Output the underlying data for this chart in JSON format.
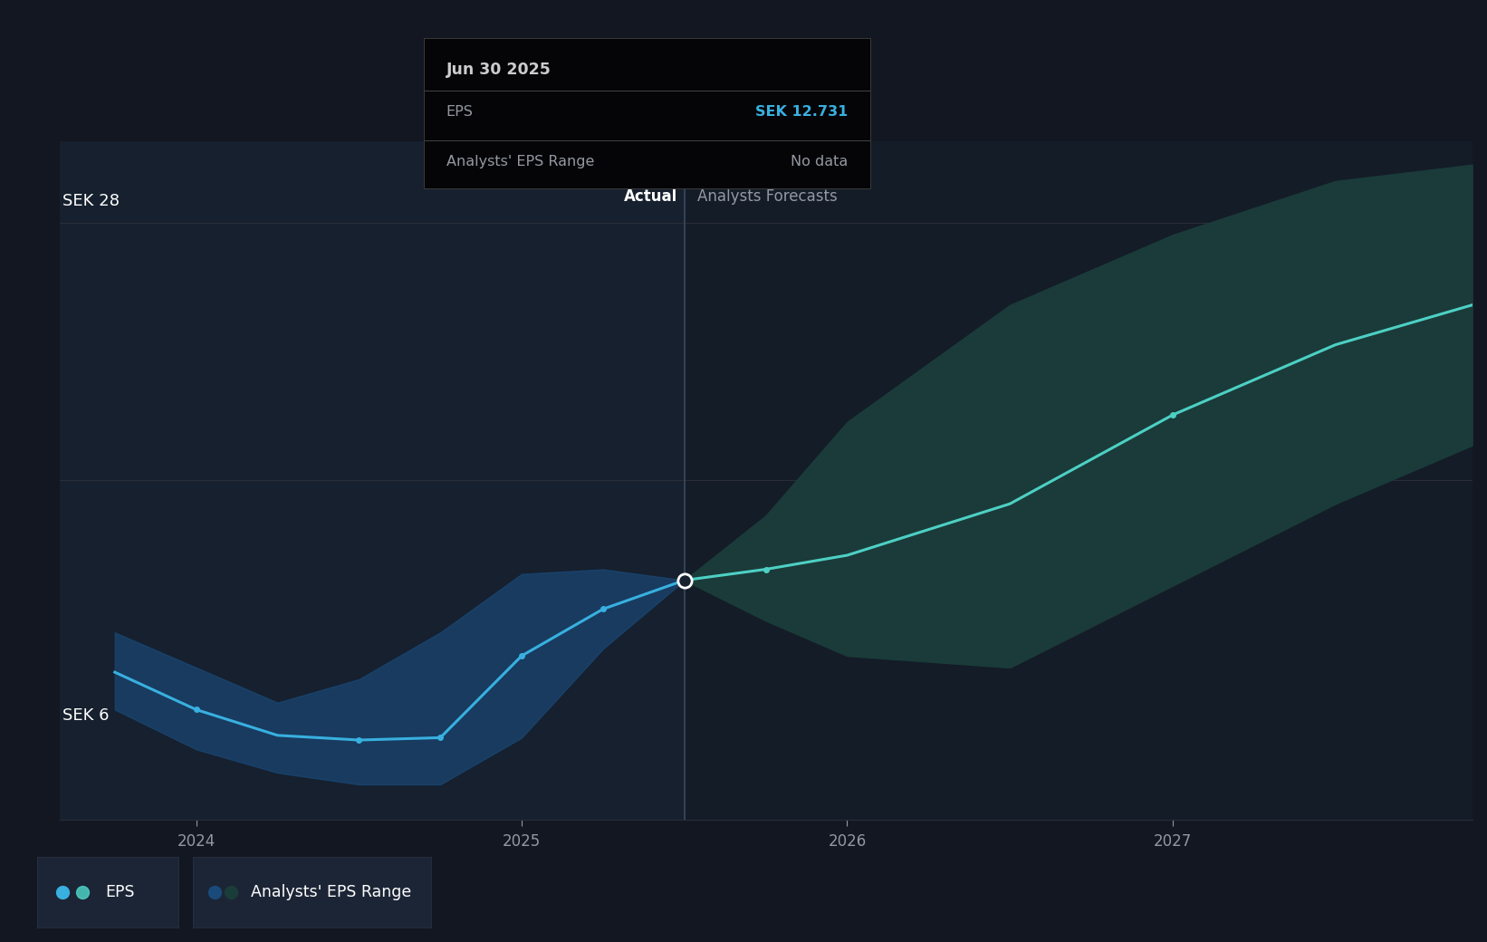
{
  "bg_color": "#131722",
  "bg_color_actual": "#16202e",
  "bg_color_forecast": "#141c28",
  "grid_color": "#2a2e39",
  "text_color": "#9598a1",
  "white_color": "#ffffff",
  "blue_line_color": "#38b0e0",
  "teal_line_color": "#4dd0c4",
  "blue_fill_color": "#1a4a7a",
  "teal_fill_color": "#1b3d3a",
  "divider_color": "#3a4a60",
  "tooltip_bg": "#050508",
  "tooltip_border": "#3a3a3a",
  "eps_value_color": "#38b0e0",
  "ylabel_28": "SEK 28",
  "ylabel_6": "SEK 6",
  "actual_label": "Actual",
  "forecast_label": "Analysts Forecasts",
  "tooltip_date": "Jun 30 2025",
  "tooltip_eps_label": "EPS",
  "tooltip_eps_value": "SEK 12.731",
  "tooltip_range_label": "Analysts' EPS Range",
  "tooltip_range_value": "No data",
  "legend_eps": "EPS",
  "legend_range": "Analysts' EPS Range",
  "xlim_min": 2023.58,
  "xlim_max": 2027.92,
  "ylim_min": 2.5,
  "ylim_max": 31.5,
  "divider_x": 2025.5,
  "y_28_val": 28,
  "y_6_val": 6,
  "gridline_y": [
    28,
    17
  ],
  "eps_actual_x": [
    2023.75,
    2024.0,
    2024.25,
    2024.5,
    2024.75,
    2025.0,
    2025.25,
    2025.5
  ],
  "eps_actual_y": [
    8.8,
    7.2,
    6.1,
    5.9,
    6.0,
    9.5,
    11.5,
    12.731
  ],
  "eps_range_actual_upper": [
    10.5,
    9.0,
    7.5,
    8.5,
    10.5,
    13.0,
    13.2,
    12.731
  ],
  "eps_range_actual_lower": [
    7.2,
    5.5,
    4.5,
    4.0,
    4.0,
    6.0,
    9.8,
    12.731
  ],
  "eps_forecast_x": [
    2025.5,
    2025.75,
    2026.0,
    2026.5,
    2027.0,
    2027.5,
    2027.92
  ],
  "eps_forecast_y": [
    12.731,
    13.2,
    13.8,
    16.0,
    19.8,
    22.8,
    24.5
  ],
  "eps_range_forecast_upper": [
    12.731,
    15.5,
    19.5,
    24.5,
    27.5,
    29.8,
    30.5
  ],
  "eps_range_forecast_lower": [
    12.731,
    11.0,
    9.5,
    9.0,
    12.5,
    16.0,
    18.5
  ],
  "xtick_positions": [
    2024.0,
    2025.0,
    2026.0,
    2027.0
  ],
  "xtick_labels": [
    "2024",
    "2025",
    "2026",
    "2027"
  ],
  "marker_points_actual": [
    2024.0,
    2024.5,
    2024.75,
    2025.0,
    2025.25
  ],
  "marker_points_forecast": [
    2025.75,
    2027.0
  ]
}
